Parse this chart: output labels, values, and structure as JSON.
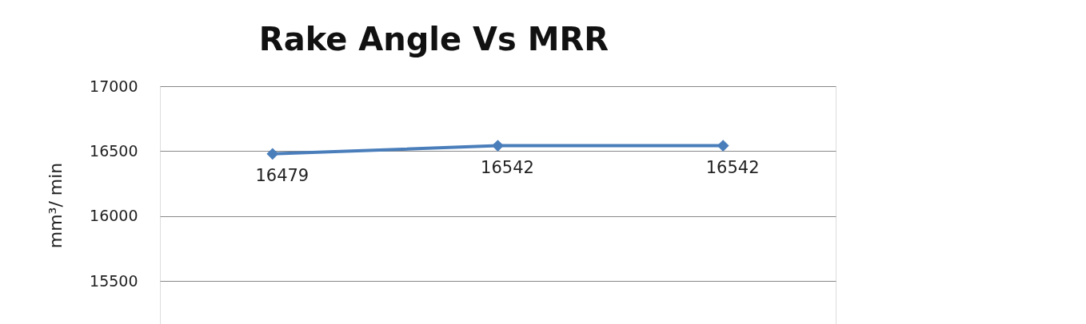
{
  "chart_data": {
    "type": "line",
    "title": "Rake Angle Vs MRR",
    "ylabel": "mm³/ min",
    "categories": [
      null,
      null,
      null
    ],
    "series": [
      {
        "color": "#4a7ebb",
        "values": [
          16479,
          16542,
          16542
        ]
      }
    ],
    "ylim": [
      15170,
      17000
    ],
    "yticks": [
      15500,
      16000,
      16500,
      17000
    ],
    "grid": "y",
    "marker": "diamond",
    "line_style": "solid",
    "data_labels": true
  }
}
